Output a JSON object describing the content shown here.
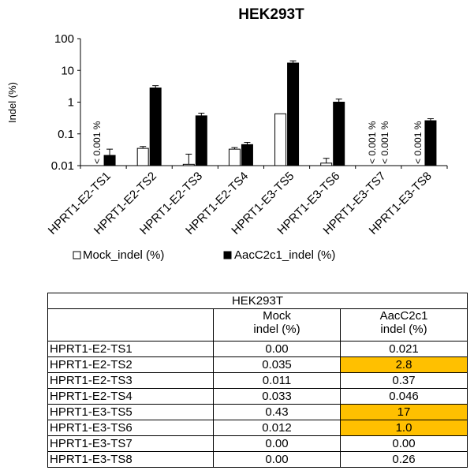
{
  "colors": {
    "mock": "#ffffff",
    "aac": "#000000",
    "highlight": "#ffc000"
  },
  "chart_data": {
    "type": "bar",
    "title": "HEK293T",
    "ylabel": "Indel (%)",
    "y_scale": "log",
    "ylim": [
      0.01,
      100
    ],
    "y_ticks": [
      "100",
      "10",
      "1",
      "0.1",
      "0.01"
    ],
    "categories": [
      "HPRT1-E2-TS1",
      "HPRT1-E2-TS2",
      "HPRT1-E2-TS3",
      "HPRT1-E2-TS4",
      "HPRT1-E3-TS5",
      "HPRT1-E3-TS6",
      "HPRT1-E3-TS7",
      "HPRT1-E3-TS8"
    ],
    "series": [
      {
        "name": "Mock_indel (%)",
        "values": [
          0.0,
          0.035,
          0.011,
          0.033,
          0.43,
          0.012,
          0.0,
          0.0
        ],
        "error": [
          0,
          0.005,
          0.012,
          0.004,
          0,
          0.005,
          0,
          0
        ]
      },
      {
        "name": "AacC2c1_indel (%)",
        "values": [
          0.021,
          2.8,
          0.37,
          0.046,
          17,
          1.0,
          0.0,
          0.26
        ],
        "error": [
          0.012,
          0.5,
          0.08,
          0.008,
          3,
          0.25,
          0,
          0.04
        ]
      }
    ],
    "annotations": [
      {
        "category": "HPRT1-E2-TS1",
        "series": "Mock_indel (%)",
        "text": "< 0.001 %"
      },
      {
        "category": "HPRT1-E3-TS7",
        "series": "Mock_indel (%)",
        "text": "< 0.001 %"
      },
      {
        "category": "HPRT1-E3-TS7",
        "series": "AacC2c1_indel (%)",
        "text": "< 0.001 %"
      },
      {
        "category": "HPRT1-E3-TS8",
        "series": "Mock_indel (%)",
        "text": "< 0.001 %"
      }
    ],
    "legend_position": "bottom",
    "grid": false
  },
  "table": {
    "title": "HEK293T",
    "columns": [
      "Mock\nindel (%)",
      "AacC2c1\nindel (%)"
    ],
    "rows": [
      {
        "label": "HPRT1-E2-TS1",
        "mock": "0.00",
        "aac": "0.021",
        "highlight": false
      },
      {
        "label": "HPRT1-E2-TS2",
        "mock": "0.035",
        "aac": "2.8",
        "highlight": true
      },
      {
        "label": "HPRT1-E2-TS3",
        "mock": "0.011",
        "aac": "0.37",
        "highlight": false
      },
      {
        "label": "HPRT1-E2-TS4",
        "mock": "0.033",
        "aac": "0.046",
        "highlight": false
      },
      {
        "label": "HPRT1-E3-TS5",
        "mock": "0.43",
        "aac": "17",
        "highlight": true
      },
      {
        "label": "HPRT1-E3-TS6",
        "mock": "0.012",
        "aac": "1.0",
        "highlight": true
      },
      {
        "label": "HPRT1-E3-TS7",
        "mock": "0.00",
        "aac": "0.00",
        "highlight": false
      },
      {
        "label": "HPRT1-E3-TS8",
        "mock": "0.00",
        "aac": "0.26",
        "highlight": false
      }
    ]
  }
}
